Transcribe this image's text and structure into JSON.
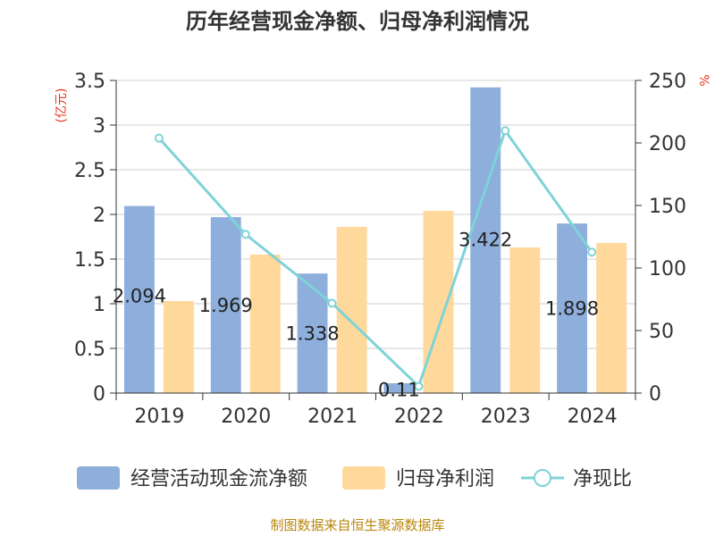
{
  "chart_data": {
    "type": "bar",
    "title": "历年经营现金净额、归母净利润情况",
    "categories": [
      "2019",
      "2020",
      "2021",
      "2022",
      "2023",
      "2024"
    ],
    "y_left": {
      "label": "(亿元)",
      "ylim": [
        0,
        3.5
      ],
      "ticks": [
        "0",
        "0.5",
        "1",
        "1.5",
        "2",
        "2.5",
        "3",
        "3.5"
      ]
    },
    "y_right": {
      "label": "%",
      "ylim": [
        0,
        250
      ],
      "ticks": [
        "0",
        "50",
        "100",
        "150",
        "200",
        "250"
      ]
    },
    "series": [
      {
        "name": "经营活动现金流净额",
        "kind": "bar",
        "axis": "left",
        "color": "#8eaedc",
        "values": [
          2.094,
          1.969,
          1.338,
          0.11,
          3.422,
          1.898
        ],
        "labels": [
          "2.094",
          "1.969",
          "1.338",
          "0.11",
          "3.422",
          "1.898"
        ]
      },
      {
        "name": "归母净利润",
        "kind": "bar",
        "axis": "left",
        "color": "#ffd89b",
        "values": [
          1.03,
          1.55,
          1.86,
          2.04,
          1.63,
          1.68
        ]
      },
      {
        "name": "净现比",
        "kind": "line",
        "axis": "right",
        "color": "#7fd3d8",
        "values": [
          203.8,
          126.9,
          71.8,
          5.4,
          209.8,
          112.7
        ]
      }
    ],
    "grid": true,
    "legend_position": "bottom"
  },
  "source": "制图数据来自恒生聚源数据库"
}
